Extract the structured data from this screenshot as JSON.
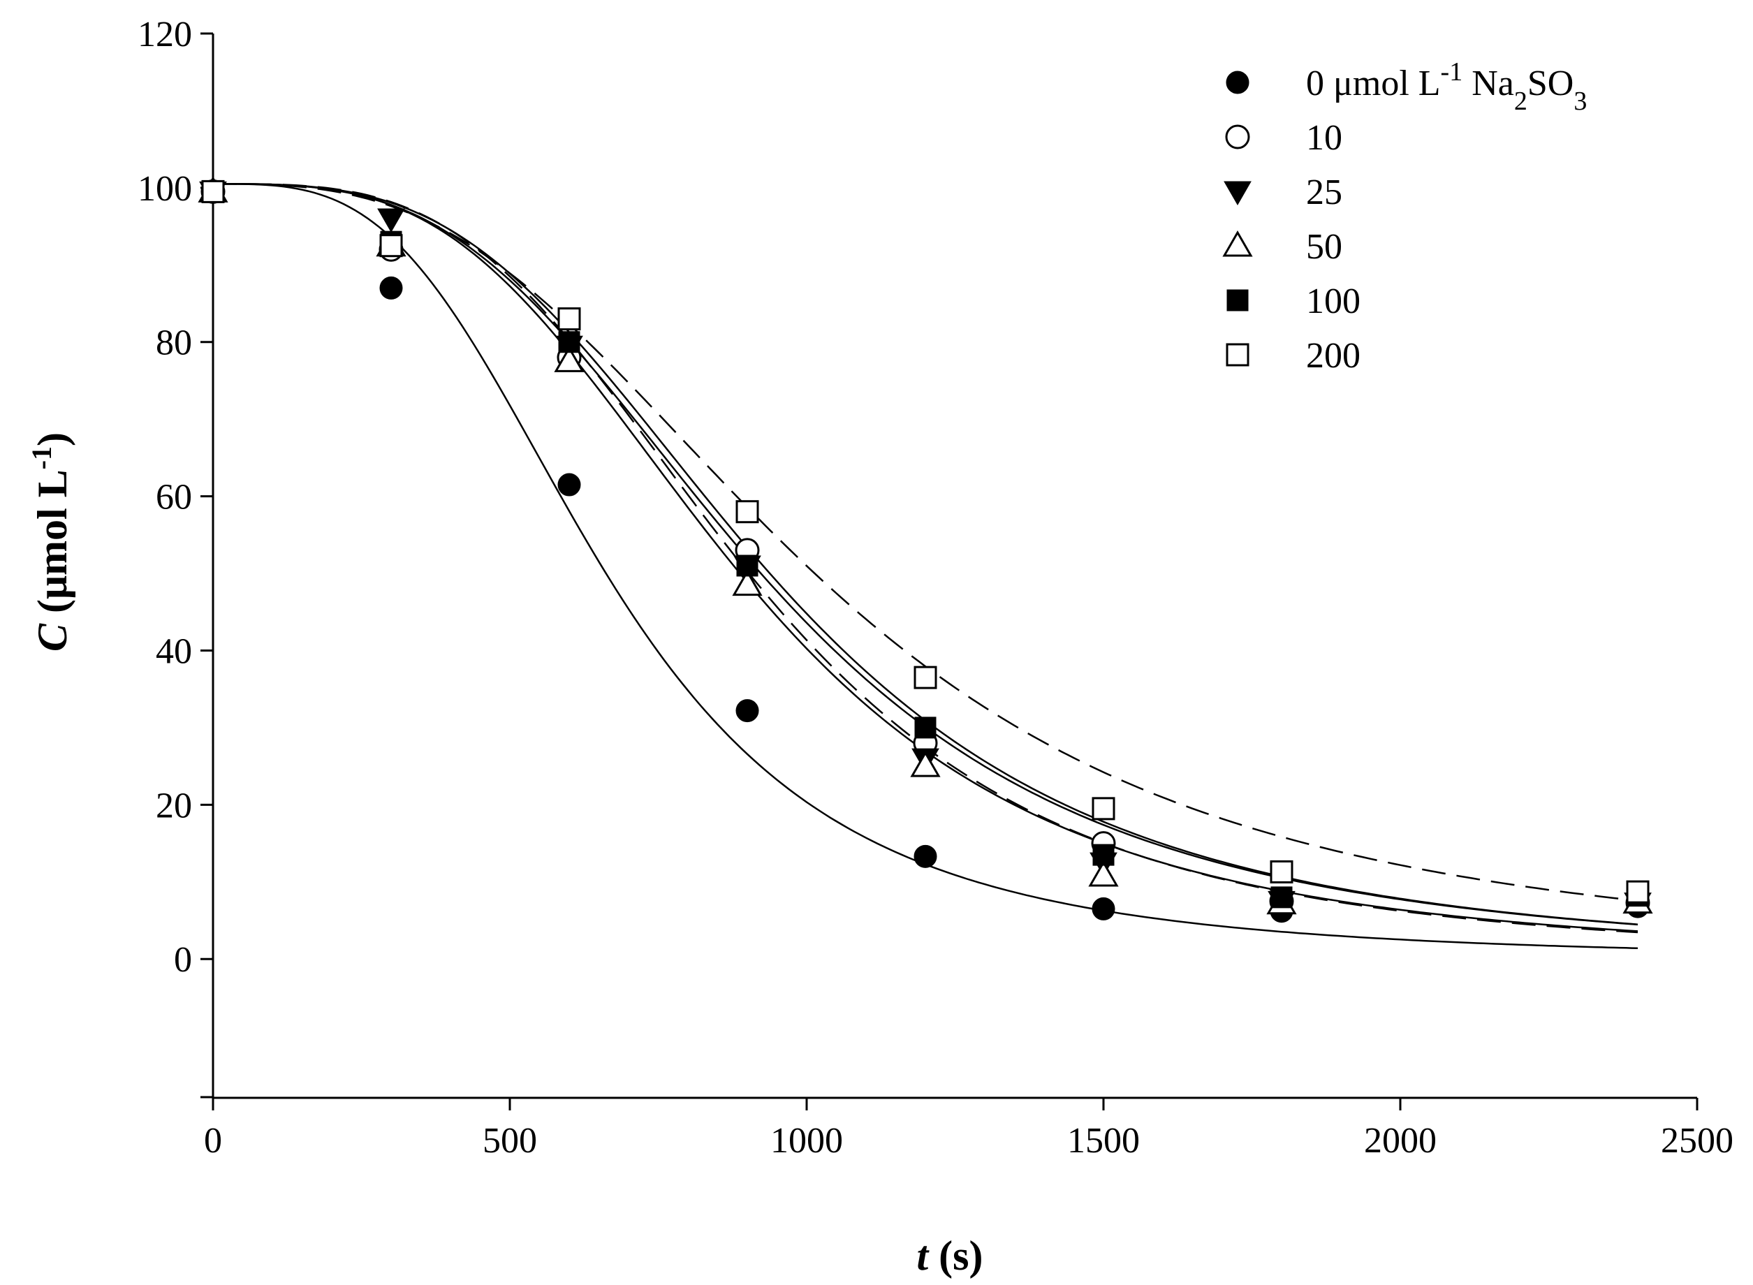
{
  "chart_data": {
    "type": "scatter",
    "title": "",
    "xlabel": {
      "italic": "t",
      "rest": " (s)"
    },
    "ylabel": {
      "italic": "C",
      "rest": " (μmol L",
      "sup": "-1",
      "close": ")"
    },
    "xlim": [
      0,
      2500
    ],
    "ylim": [
      -18,
      120
    ],
    "xticks": [
      0,
      500,
      1000,
      1500,
      2000,
      2500
    ],
    "yticks": [
      0,
      20,
      40,
      60,
      80,
      100,
      120
    ],
    "grid": false,
    "legend_position": "top-right",
    "legend_title_parts": {
      "a": "0 μmol L",
      "sup": "-1",
      "b": " Na",
      "sub1": "2",
      "c": "SO",
      "sub2": "3"
    },
    "x": [
      0,
      300,
      600,
      900,
      1200,
      1500,
      1800,
      2400
    ],
    "series": [
      {
        "name": "0",
        "marker": "circle-filled",
        "line": "solid",
        "values": [
          99.5,
          87,
          61.5,
          32.2,
          13.3,
          6.5,
          6.2,
          6.8
        ],
        "fit": {
          "c0": 100.5,
          "t50": 660,
          "n": 3.3
        }
      },
      {
        "name": "10",
        "marker": "circle-open",
        "line": "solid",
        "values": [
          99.5,
          92,
          78,
          53,
          28,
          15,
          7.5,
          7.3
        ],
        "fit": {
          "c0": 100.5,
          "t50": 920,
          "n": 3.2
        }
      },
      {
        "name": "25",
        "marker": "triangle-down-filled",
        "line": "dashed",
        "values": [
          99.5,
          96,
          79.5,
          51,
          26,
          12.5,
          7.5,
          7.3
        ],
        "fit": {
          "c0": 100.5,
          "t50": 900,
          "n": 3.4
        }
      },
      {
        "name": "50",
        "marker": "triangle-up-open",
        "line": "solid",
        "values": [
          99.5,
          92.5,
          77.5,
          48.5,
          25,
          10.8,
          7.2,
          7.3
        ],
        "fit": {
          "c0": 100.5,
          "t50": 885,
          "n": 3.3
        }
      },
      {
        "name": "100",
        "marker": "square-filled",
        "line": "solid",
        "values": [
          99.5,
          93,
          80,
          51,
          30,
          13.5,
          8,
          8.2
        ],
        "fit": {
          "c0": 100.5,
          "t50": 935,
          "n": 3.25
        }
      },
      {
        "name": "200",
        "marker": "square-open",
        "line": "dashed",
        "values": [
          99.5,
          92.5,
          83,
          58,
          36.5,
          19.5,
          11.3,
          8.7
        ],
        "fit": {
          "c0": 100.5,
          "t50": 1010,
          "n": 2.9
        }
      }
    ]
  }
}
